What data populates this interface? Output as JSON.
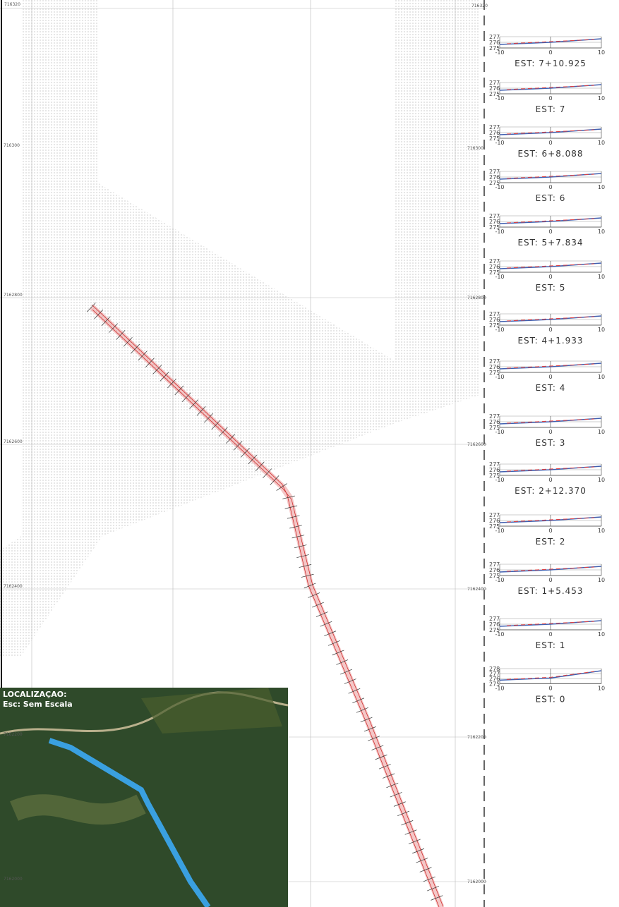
{
  "location": {
    "title": "LOCALIZAÇAO:",
    "scale": "Esc: Sem Escala"
  },
  "grid_labels": {
    "top_left": "716320",
    "top_right": "716320",
    "rows": [
      {
        "left": "716300",
        "right": "716300"
      },
      {
        "left": "7162800",
        "right": "7162800"
      },
      {
        "left": "7162600",
        "right": "7162600"
      },
      {
        "left": "7162400",
        "right": "7162400"
      },
      {
        "left": "7162200",
        "right": "7162200"
      },
      {
        "left": "7162000",
        "right": "7162000"
      }
    ]
  },
  "section_x_labels": [
    "-10",
    "0",
    "10"
  ],
  "sections": [
    {
      "label": "EST: 7+10.925",
      "y_labels": [
        "277",
        "276",
        "275"
      ]
    },
    {
      "label": "EST: 7",
      "y_labels": [
        "277",
        "276",
        "275"
      ]
    },
    {
      "label": "EST: 6+8.088",
      "y_labels": [
        "277",
        "276",
        "275"
      ]
    },
    {
      "label": "EST: 6",
      "y_labels": [
        "277",
        "276",
        "275"
      ]
    },
    {
      "label": "EST: 5+7.834",
      "y_labels": [
        "277",
        "276",
        "275"
      ]
    },
    {
      "label": "EST: 5",
      "y_labels": [
        "277",
        "276",
        "275"
      ]
    },
    {
      "label": "EST: 4+1.933",
      "y_labels": [
        "277",
        "276",
        "275"
      ]
    },
    {
      "label": "EST: 4",
      "y_labels": [
        "277",
        "276",
        "275"
      ]
    },
    {
      "label": "EST: 3",
      "y_labels": [
        "277",
        "276",
        "275"
      ]
    },
    {
      "label": "EST: 2+12.370",
      "y_labels": [
        "277",
        "276",
        "275"
      ]
    },
    {
      "label": "EST: 2",
      "y_labels": [
        "277",
        "276",
        "275"
      ]
    },
    {
      "label": "EST: 1+5.453",
      "y_labels": [
        "277",
        "276",
        "275"
      ]
    },
    {
      "label": "EST: 1",
      "y_labels": [
        "277",
        "276",
        "275"
      ]
    },
    {
      "label": "EST: 0",
      "y_labels": [
        "278",
        "277",
        "276",
        "275"
      ]
    }
  ]
}
